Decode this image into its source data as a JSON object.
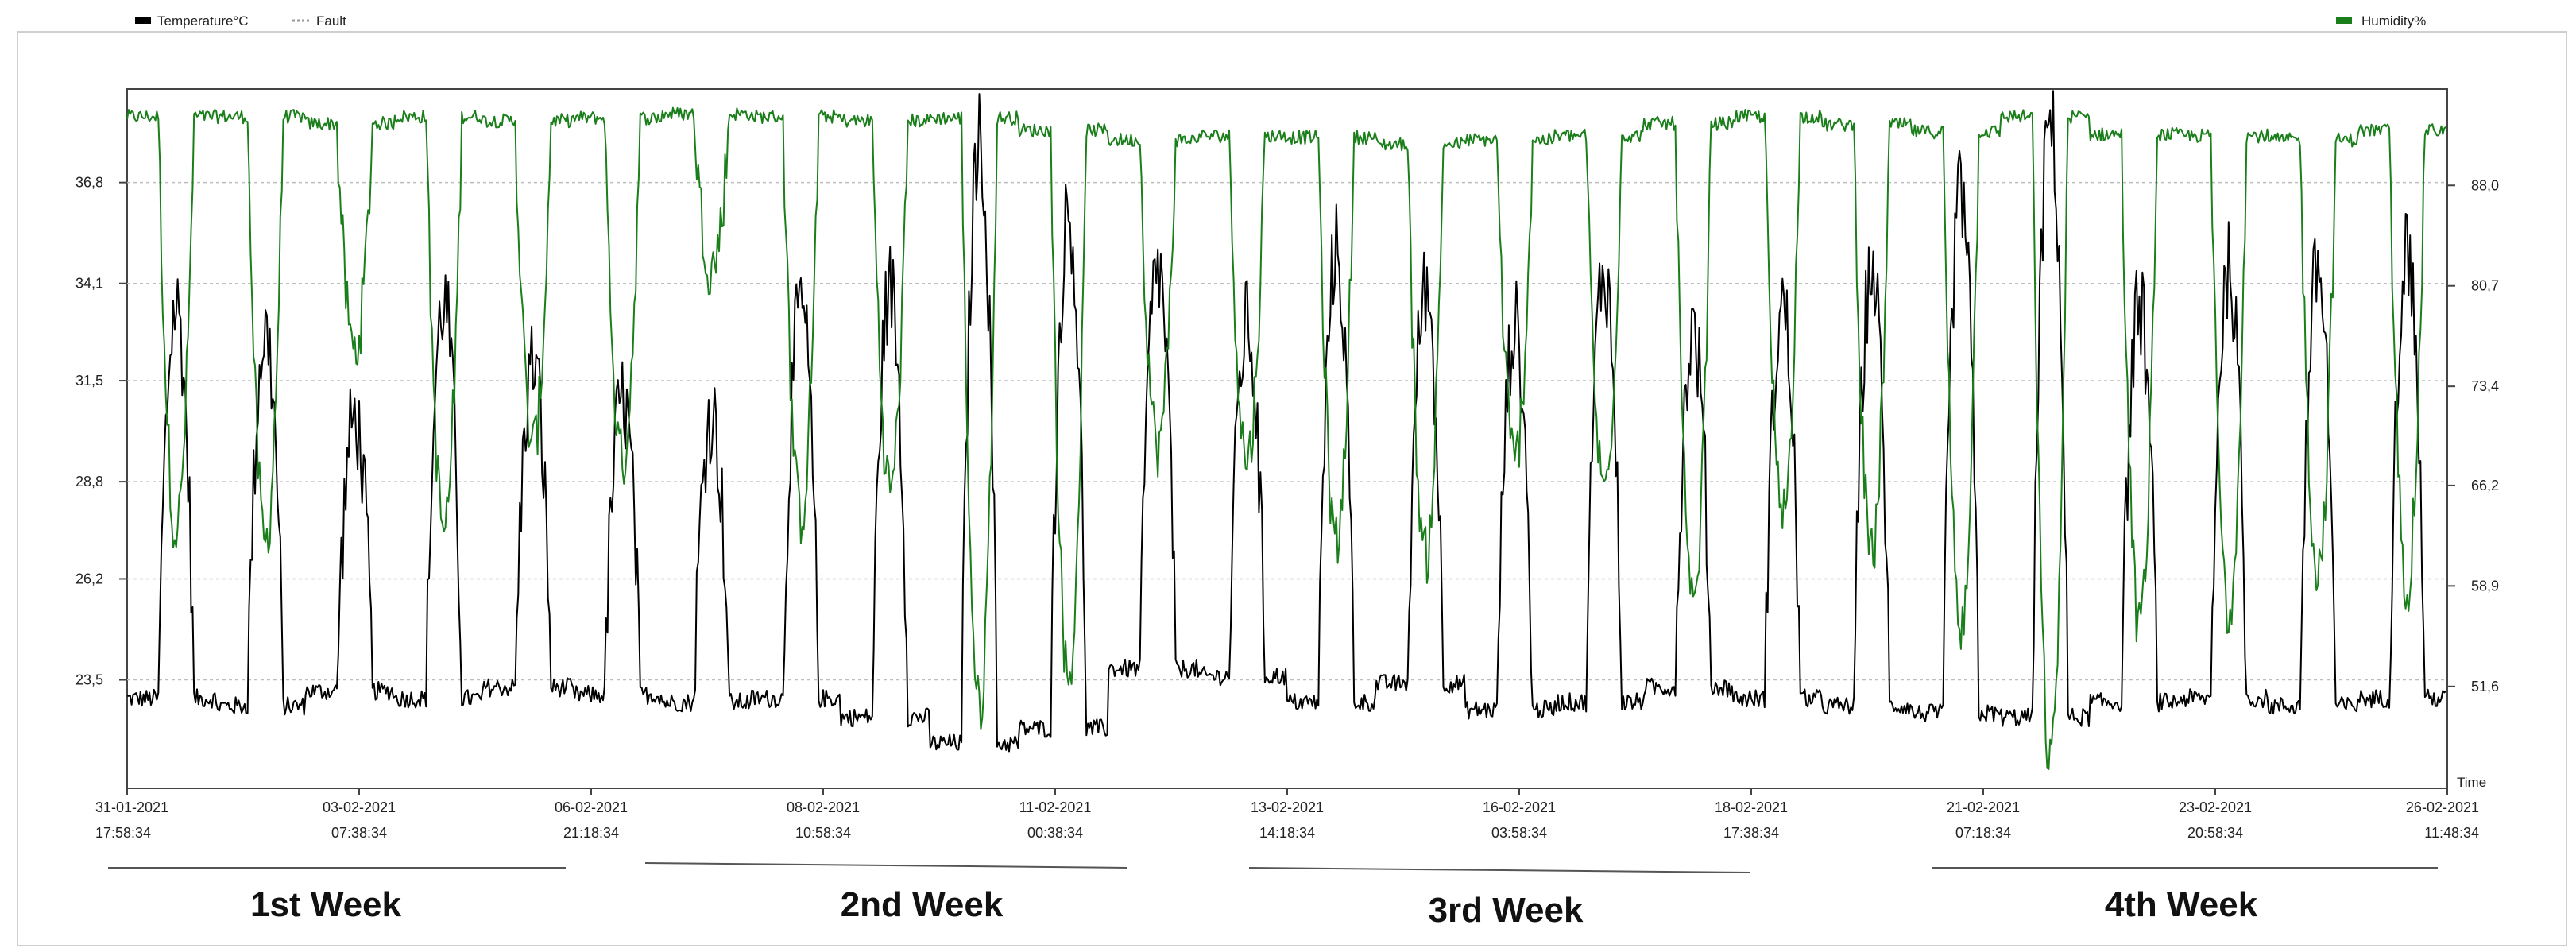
{
  "legend": {
    "items": [
      {
        "label": "Temperature°C",
        "color": "#000000",
        "style": "solid"
      },
      {
        "label": "Fault",
        "color": "#999999",
        "style": "dotted"
      },
      {
        "label": "Humidity%",
        "color": "#1a7f1a",
        "style": "solid"
      }
    ]
  },
  "weeks": [
    "1st Week",
    "2nd Week",
    "3rd Week",
    "4th Week"
  ],
  "chart_data": {
    "type": "line",
    "xlabel": "Time",
    "x_ticks": [
      {
        "date": "31-01-2021",
        "time": "17:58:34"
      },
      {
        "date": "03-02-2021",
        "time": "07:38:34"
      },
      {
        "date": "06-02-2021",
        "time": "21:18:34"
      },
      {
        "date": "08-02-2021",
        "time": "10:58:34"
      },
      {
        "date": "11-02-2021",
        "time": "00:38:34"
      },
      {
        "date": "13-02-2021",
        "time": "14:18:34"
      },
      {
        "date": "16-02-2021",
        "time": "03:58:34"
      },
      {
        "date": "18-02-2021",
        "time": "17:38:34"
      },
      {
        "date": "21-02-2021",
        "time": "07:18:34"
      },
      {
        "date": "23-02-2021",
        "time": "20:58:34"
      },
      {
        "date": "26-02-2021",
        "time": "11:48:34"
      }
    ],
    "y_left": {
      "ticks": [
        "36,8",
        "34,1",
        "31,5",
        "28,8",
        "26,2",
        "23,5"
      ],
      "values": [
        36.8,
        34.1,
        31.5,
        28.8,
        26.2,
        23.5
      ],
      "range": [
        20.6,
        39.3
      ]
    },
    "y_right": {
      "ticks": [
        "88,0",
        "80,7",
        "73,4",
        "66,2",
        "58,9",
        "51,6"
      ],
      "values": [
        88.0,
        80.7,
        73.4,
        66.2,
        58.9,
        51.6
      ],
      "range": [
        44.2,
        95.0
      ]
    },
    "grid": true,
    "legend_placement": "top",
    "cycles": 26,
    "series": [
      {
        "name": "Temperature°C",
        "axis": "left",
        "color": "#000000",
        "cycle_low": [
          23.0,
          22.8,
          23.2,
          23.0,
          23.3,
          23.1,
          22.9,
          23.0,
          22.5,
          21.8,
          22.2,
          23.8,
          23.6,
          22.9,
          23.4,
          22.7,
          22.9,
          23.3,
          23.0,
          22.8,
          22.6,
          22.5,
          22.9,
          23.0,
          22.8,
          23.0
        ],
        "cycle_high": [
          33.5,
          32.8,
          30.5,
          33.6,
          32.0,
          31.0,
          30.6,
          33.5,
          34.0,
          38.0,
          36.0,
          34.5,
          33.0,
          35.0,
          34.0,
          33.0,
          34.5,
          32.8,
          33.5,
          34.5,
          36.5,
          38.5,
          33.5,
          34.5,
          34.5,
          35.0
        ]
      },
      {
        "name": "Humidity%",
        "axis": "right",
        "color": "#1a7f1a",
        "cycle_high": [
          93.0,
          93.0,
          92.5,
          93.0,
          92.7,
          92.9,
          93.2,
          93.0,
          92.7,
          92.9,
          92.0,
          91.3,
          91.6,
          91.5,
          91.0,
          91.3,
          91.6,
          92.5,
          93.0,
          92.4,
          91.9,
          93.0,
          91.7,
          91.6,
          91.3,
          92.0
        ],
        "cycle_low": [
          63.0,
          62.0,
          76.0,
          63.0,
          69.0,
          68.0,
          82.0,
          64.0,
          66.0,
          50.0,
          52.0,
          69.0,
          68.0,
          62.0,
          61.0,
          68.0,
          66.0,
          57.0,
          64.0,
          61.0,
          56.0,
          46.0,
          56.0,
          57.0,
          60.0,
          59.0
        ]
      }
    ]
  }
}
